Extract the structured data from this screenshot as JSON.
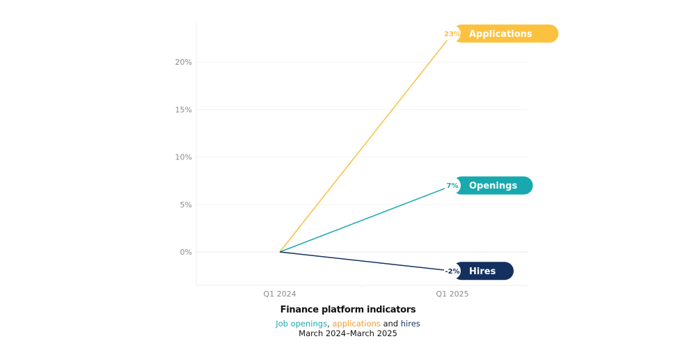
{
  "chart_data": {
    "type": "line",
    "title": "Finance platform indicators",
    "subtitle": {
      "parts": [
        {
          "text": "Job openings",
          "color": "#1aa9ad"
        },
        {
          "text": ", ",
          "color": "#111111"
        },
        {
          "text": "applications",
          "color": "#f39c33"
        },
        {
          "text": " and ",
          "color": "#111111"
        },
        {
          "text": "hires",
          "color": "#14305e"
        }
      ]
    },
    "date_range": "March 2024–March 2025",
    "xlabel": "",
    "ylabel": "",
    "x": [
      "Q1 2024",
      "Q1 2025"
    ],
    "y_ticks": [
      "0%",
      "5%",
      "10%",
      "15%",
      "20%"
    ],
    "ylim": [
      -3.5,
      24.5
    ],
    "grid": true,
    "legend": "end-of-line labels",
    "series": [
      {
        "name": "Applications",
        "values": [
          0,
          23
        ],
        "end_label": "23%",
        "color": "#fcc23f",
        "line_color": "#f5c242"
      },
      {
        "name": "Openings",
        "values": [
          0,
          7
        ],
        "end_label": "7%",
        "color": "#17a9ad",
        "line_color": "#1aa9ad"
      },
      {
        "name": "Hires",
        "values": [
          0,
          -2
        ],
        "end_label": "-2%",
        "color": "#14305e",
        "line_color": "#14305e"
      }
    ]
  }
}
